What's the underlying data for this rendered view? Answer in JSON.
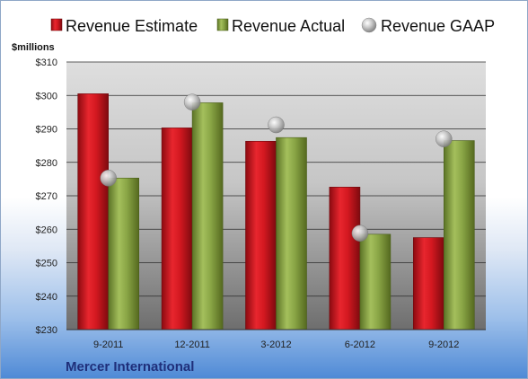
{
  "chart_data": {
    "type": "bar",
    "unit_label": "$millions",
    "company": "Mercer International",
    "categories": [
      "9-2011",
      "12-2011",
      "3-2012",
      "6-2012",
      "9-2012"
    ],
    "series": [
      {
        "name": "Revenue Estimate",
        "kind": "bar",
        "color": "#c8141c",
        "values": [
          300.5,
          290.3,
          286.3,
          272.6,
          257.5
        ]
      },
      {
        "name": "Revenue Actual",
        "kind": "bar",
        "color": "#7f9a3c",
        "values": [
          275.3,
          297.8,
          287.4,
          258.5,
          286.5
        ]
      },
      {
        "name": "Revenue GAAP",
        "kind": "marker",
        "color": "#b0b0b0",
        "values": [
          275.3,
          298.0,
          291.2,
          258.8,
          287.0
        ]
      }
    ],
    "ylim": [
      230,
      310
    ],
    "yticks": [
      230,
      240,
      250,
      260,
      270,
      280,
      290,
      300,
      310
    ],
    "ytick_labels": [
      "$230",
      "$240",
      "$250",
      "$260",
      "$270",
      "$280",
      "$290",
      "$300",
      "$310"
    ],
    "grid": true,
    "legend_position": "top"
  }
}
